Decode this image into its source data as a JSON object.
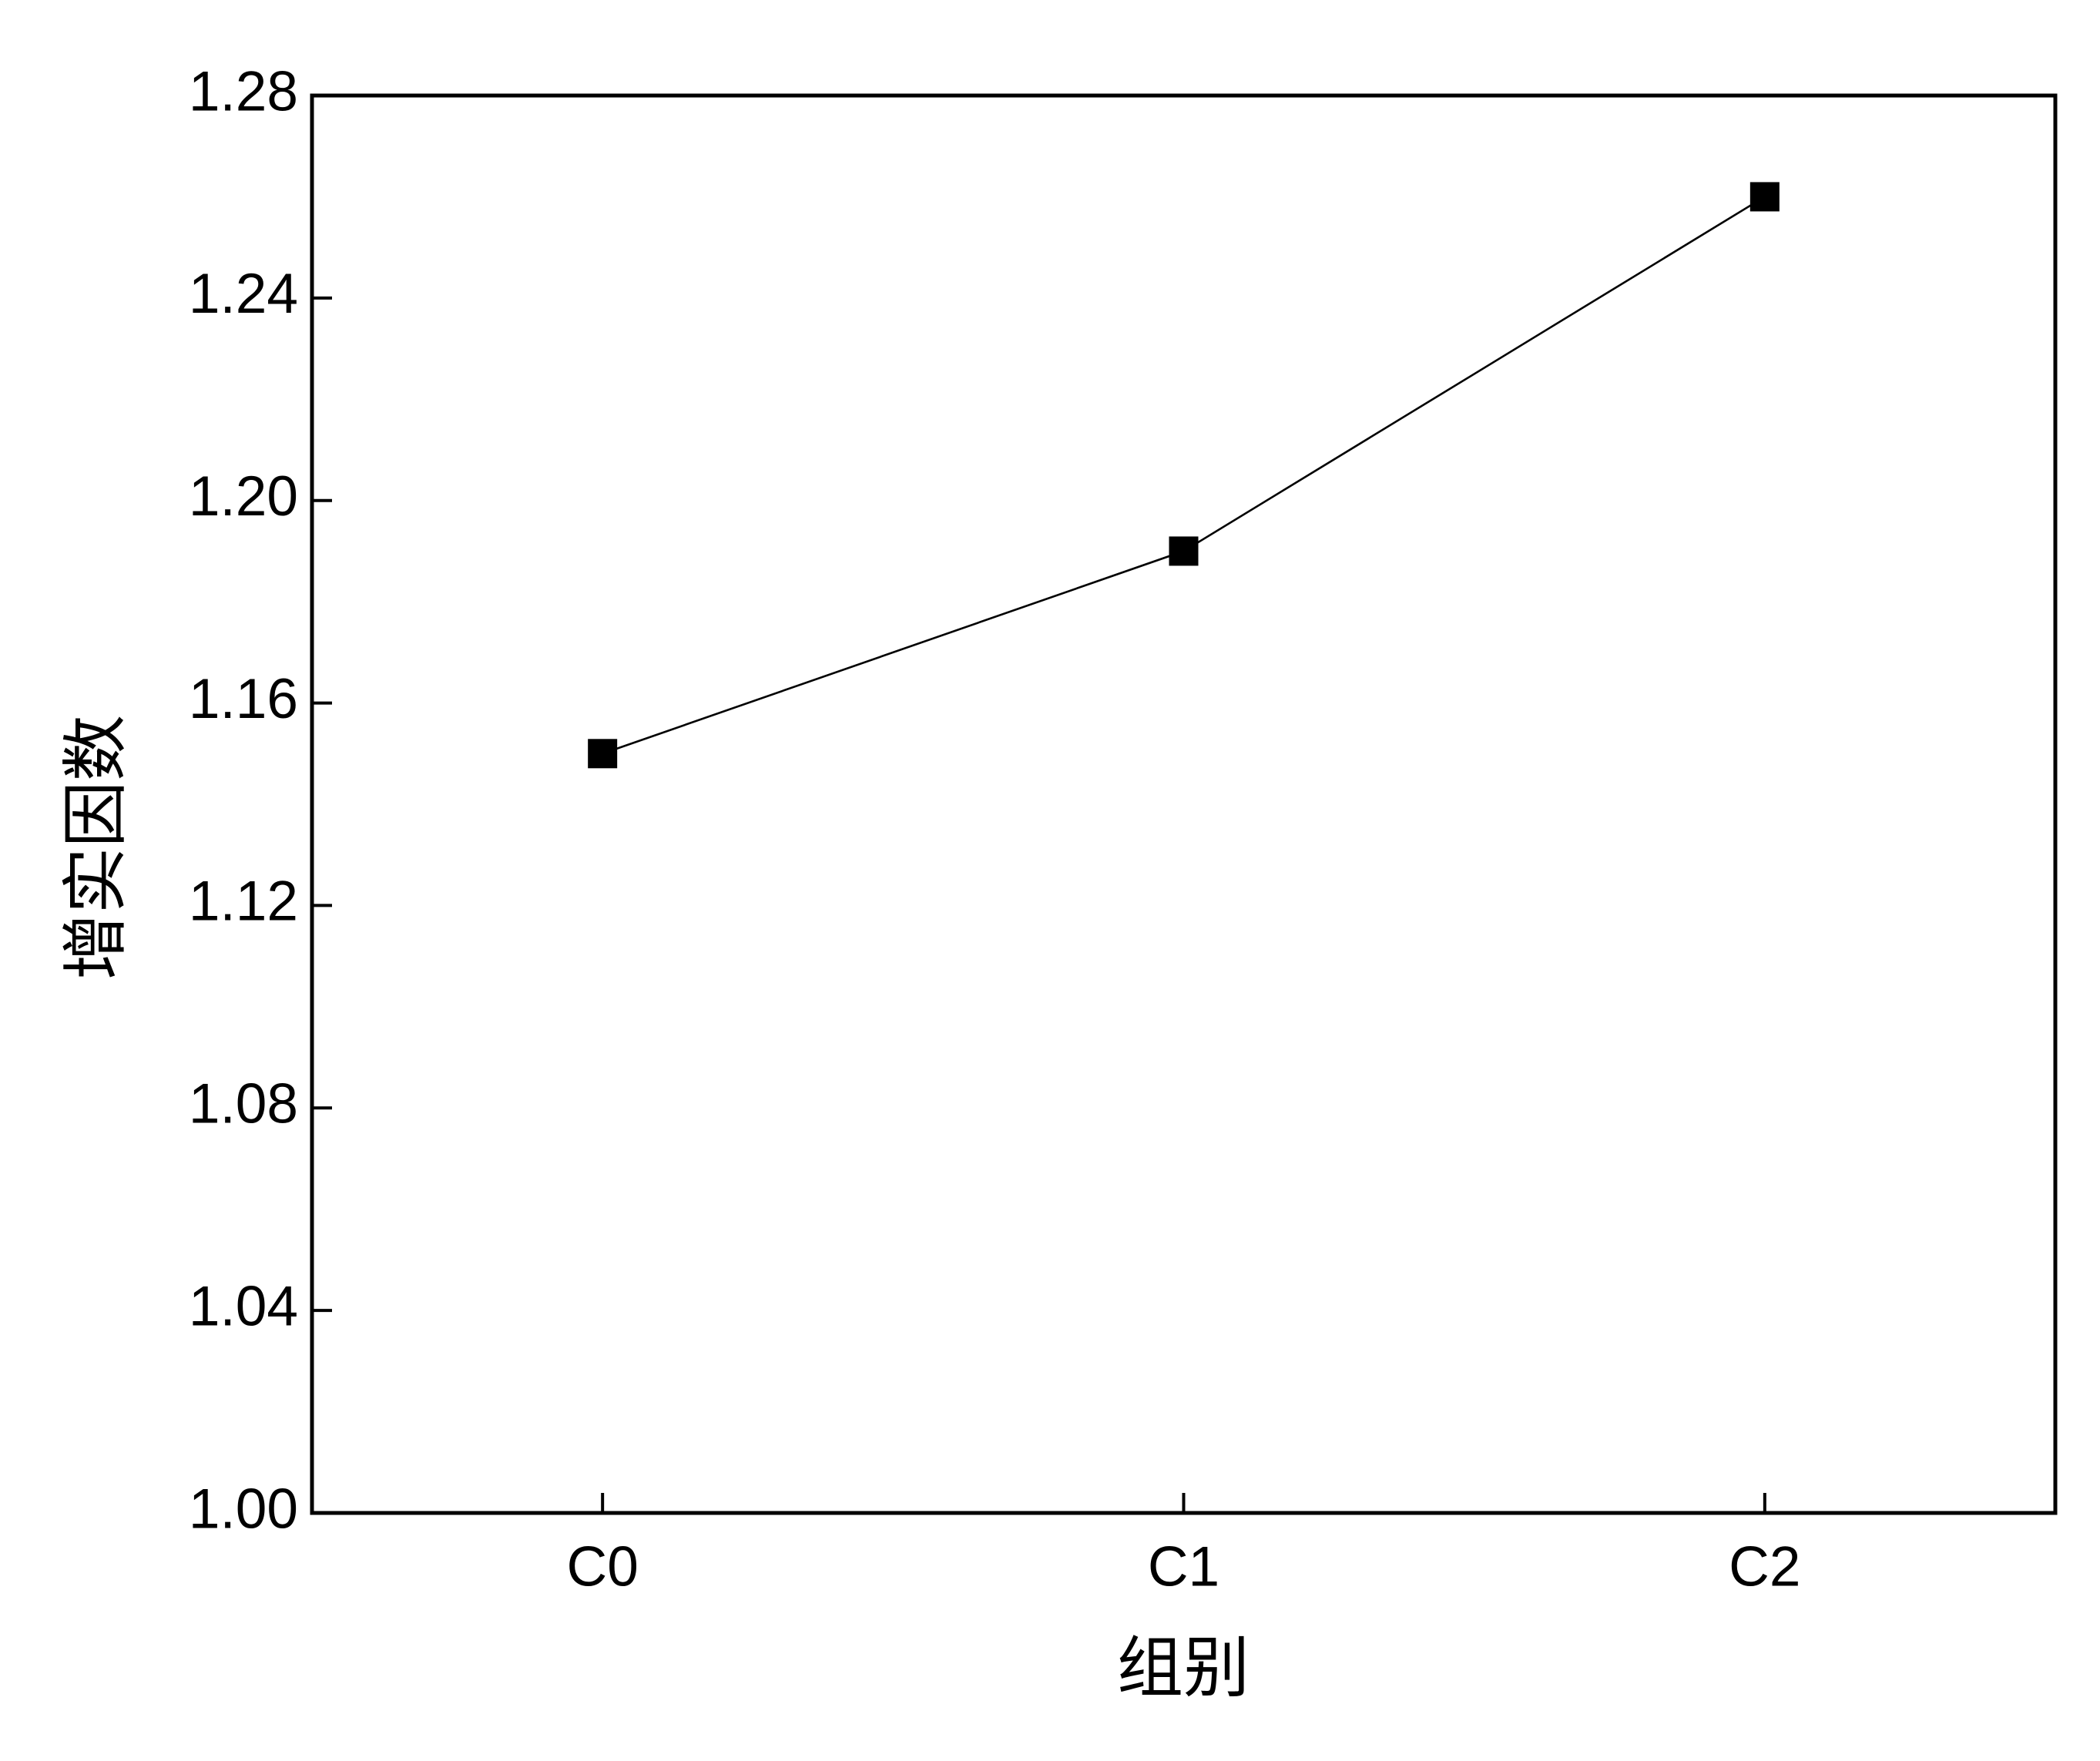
{
  "chart_data": {
    "type": "line",
    "x_label": "组别",
    "y_label": "增实因数",
    "categories": [
      "C0",
      "C1",
      "C2"
    ],
    "series": [
      {
        "name": "增实因数",
        "color": "#000000",
        "values": [
          1.15,
          1.19,
          1.26
        ]
      }
    ],
    "ylim": [
      1.0,
      1.28
    ],
    "yticks": [
      {
        "value": 1.0,
        "label": "1.00"
      },
      {
        "value": 1.04,
        "label": "1.04"
      },
      {
        "value": 1.08,
        "label": "1.08"
      },
      {
        "value": 1.12,
        "label": "1.12"
      },
      {
        "value": 1.16,
        "label": "1.16"
      },
      {
        "value": 1.2,
        "label": "1.20"
      },
      {
        "value": 1.24,
        "label": "1.24"
      },
      {
        "value": 1.28,
        "label": "1.28"
      }
    ],
    "grid": false,
    "legend": false,
    "marker": "square"
  }
}
